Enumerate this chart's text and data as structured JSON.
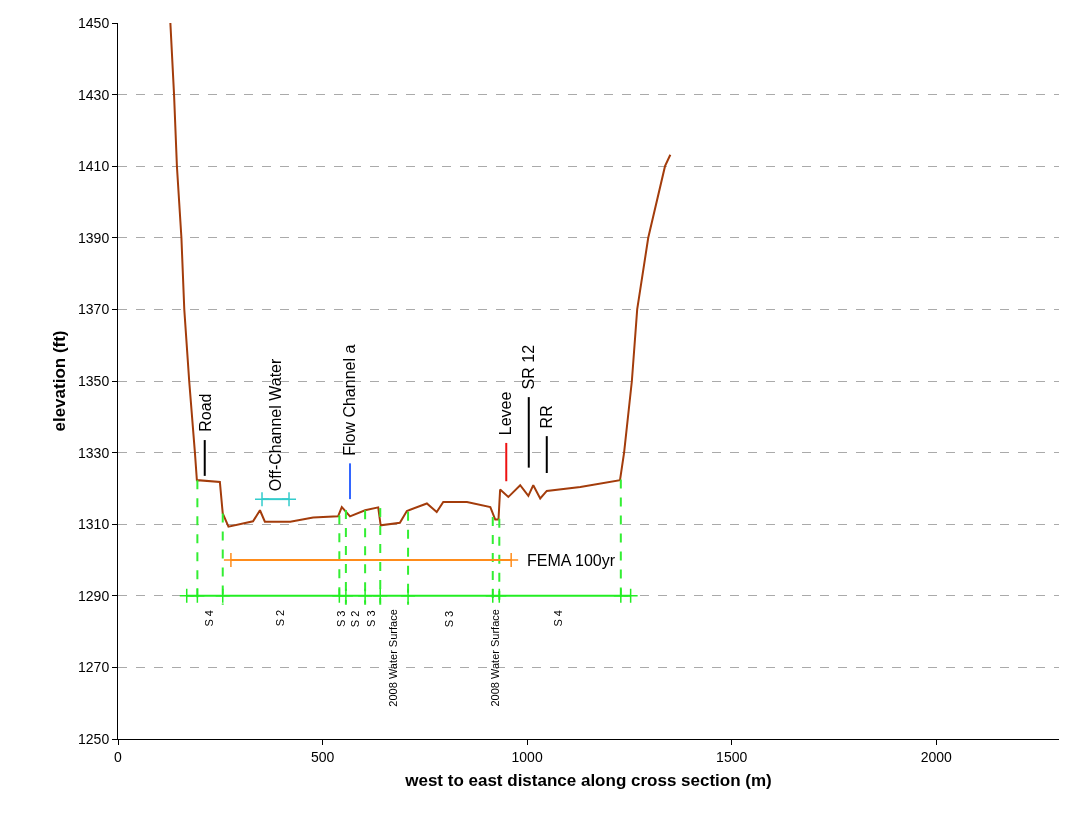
{
  "chart_data": {
    "type": "line",
    "xlabel": "west to east distance along cross section (m)",
    "ylabel": "elevation (ft)",
    "xlim": [
      0,
      2300
    ],
    "xticks": [
      0,
      500,
      1000,
      1500,
      2000
    ],
    "ylim": [
      1250,
      1450
    ],
    "yticks": [
      1250,
      1270,
      1290,
      1310,
      1330,
      1350,
      1370,
      1390,
      1410,
      1430,
      1450
    ],
    "grid": "y",
    "legend": false,
    "marker": "none",
    "line_style": "solid",
    "series": [
      {
        "color": "#a33c0b",
        "x": [
          128,
          137,
          144,
          155,
          162,
          174,
          188,
          193,
          194,
          249,
          256,
          270,
          330,
          347,
          359,
          421,
          477,
          538,
          547,
          567,
          604,
          636,
          642,
          689,
          706,
          755,
          779,
          795,
          853,
          910,
          922,
          930,
          934,
          954,
          983,
          1003,
          1015,
          1032,
          1048,
          1130,
          1227,
          1237,
          1256,
          1269,
          1296,
          1337,
          1350
        ],
        "values": [
          1450,
          1430,
          1410,
          1390,
          1370,
          1350,
          1330,
          1322,
          1322.3,
          1321.8,
          1313,
          1309.3,
          1310.8,
          1313.9,
          1310.7,
          1310.7,
          1311.9,
          1312.2,
          1314.8,
          1312.2,
          1313.9,
          1314.7,
          1309.7,
          1310.4,
          1313.7,
          1315.8,
          1313.4,
          1316.2,
          1316.2,
          1314.8,
          1311.3,
          1311.3,
          1319.7,
          1317.6,
          1320.9,
          1317.9,
          1320.9,
          1317.2,
          1319.3,
          1320.4,
          1322.3,
          1330,
          1350,
          1370,
          1390,
          1410,
          1413.2
        ]
      },
      {
        "color": "#33ee33",
        "line_style": "dashed",
        "x": [
          194,
          194,
          null,
          256,
          256,
          null,
          541,
          541,
          null,
          557,
          557,
          null,
          604,
          604,
          null,
          641,
          641,
          null,
          709,
          709,
          null,
          916,
          916,
          null,
          932,
          932,
          null,
          1229,
          1229
        ],
        "values": [
          1322.3,
          1287.5,
          null,
          1313,
          1287.5,
          null,
          1312.5,
          1287.5,
          null,
          1314,
          1287.5,
          null,
          1313.9,
          1287.5,
          null,
          1314.5,
          1287.5,
          null,
          1313.5,
          1287.5,
          null,
          1312,
          1287.5,
          null,
          1311.5,
          1287.5,
          null,
          1322.5,
          1287.5
        ]
      },
      {
        "color": "#22ee22",
        "marker": "cross",
        "x": [
          168,
          194,
          256,
          541,
          557,
          604,
          641,
          709,
          916,
          932,
          1229,
          1253
        ],
        "values": [
          1290,
          1290,
          1290,
          1290,
          1290,
          1290,
          1290,
          1290,
          1290,
          1290,
          1290,
          1290
        ]
      },
      {
        "name": "FEMA 100yr",
        "color": "#ff8c1a",
        "marker": "cross",
        "x": [
          276,
          961
        ],
        "values": [
          1300,
          1300
        ]
      },
      {
        "color": "#33cccc",
        "marker": "cross",
        "x": [
          352,
          418
        ],
        "values": [
          1317,
          1317
        ]
      },
      {
        "color": "#000000",
        "x": [
          212,
          212
        ],
        "values": [
          1323.5,
          1333.5
        ]
      },
      {
        "color": "#3366ff",
        "x": [
          567,
          567
        ],
        "values": [
          1317,
          1327
        ]
      },
      {
        "color": "#ee1111",
        "x": [
          949,
          949
        ],
        "values": [
          1322,
          1332.7
        ]
      },
      {
        "color": "#000000",
        "x": [
          1004,
          1004
        ],
        "values": [
          1325.8,
          1345.5
        ]
      },
      {
        "color": "#000000",
        "x": [
          1048,
          1048
        ],
        "values": [
          1324.3,
          1334.6
        ]
      }
    ],
    "annotations": [
      {
        "text": "Road",
        "x": 212,
        "y": 1333.5
      },
      {
        "text": "Off-Channel Water",
        "x": 385,
        "y": 1317
      },
      {
        "text": "Flow Channel a",
        "x": 567,
        "y": 1327
      },
      {
        "text": "Levee",
        "x": 949,
        "y": 1332.7
      },
      {
        "text": "SR 12",
        "x": 1004,
        "y": 1345.5
      },
      {
        "text": "RR",
        "x": 1048,
        "y": 1334.6
      },
      {
        "text": "S 4",
        "x": 223,
        "y": 1290
      },
      {
        "text": "S 2",
        "x": 396,
        "y": 1290
      },
      {
        "text": "S 3",
        "x": 547,
        "y": 1290
      },
      {
        "text": "S 2",
        "x": 579,
        "y": 1290
      },
      {
        "text": "S 3",
        "x": 620,
        "y": 1290
      },
      {
        "text": "2008 Water Surface",
        "x": 673,
        "y": 1290
      },
      {
        "text": "S 3",
        "x": 809,
        "y": 1290
      },
      {
        "text": "2008 Water Surface",
        "x": 922,
        "y": 1290
      },
      {
        "text": "S 4",
        "x": 1076,
        "y": 1290
      }
    ]
  }
}
